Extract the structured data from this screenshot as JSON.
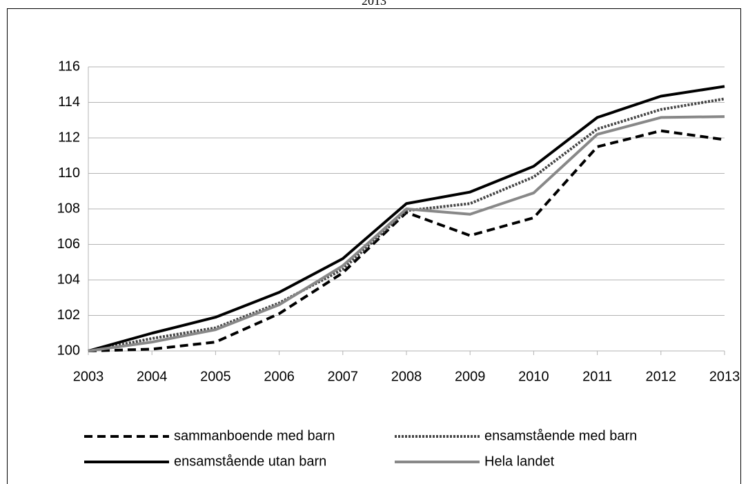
{
  "chart_data": {
    "type": "line",
    "title": "2013",
    "x": [
      2003,
      2004,
      2005,
      2006,
      2007,
      2008,
      2009,
      2010,
      2011,
      2012,
      2013
    ],
    "xlim": [
      2003,
      2013
    ],
    "xticks": [
      2003,
      2004,
      2005,
      2006,
      2007,
      2008,
      2009,
      2010,
      2011,
      2012,
      2013
    ],
    "ylim": [
      100,
      116
    ],
    "yticks": [
      100,
      102,
      104,
      106,
      108,
      110,
      112,
      114,
      116
    ],
    "grid": true,
    "legend": "bottom",
    "series": [
      {
        "name": "sammanboende med barn",
        "color": "#000000",
        "dash": "dashed",
        "values": [
          100,
          100.1,
          100.5,
          102.1,
          104.4,
          107.8,
          106.5,
          107.5,
          111.5,
          112.4,
          111.9
        ]
      },
      {
        "name": "ensamstående med barn",
        "color": "#444444",
        "dash": "dotted",
        "values": [
          100,
          100.7,
          101.3,
          102.7,
          104.6,
          107.9,
          108.3,
          109.8,
          112.5,
          113.6,
          114.2
        ]
      },
      {
        "name": "ensamstående utan barn",
        "color": "#000000",
        "dash": "solid",
        "values": [
          100,
          101,
          101.9,
          103.3,
          105.2,
          108.3,
          108.95,
          110.4,
          113.15,
          114.35,
          114.9
        ]
      },
      {
        "name": "Hela landet",
        "color": "#888888",
        "dash": "solid",
        "values": [
          100,
          100.5,
          101.2,
          102.6,
          104.8,
          108.0,
          107.7,
          108.9,
          112.2,
          113.15,
          113.2
        ]
      }
    ]
  }
}
